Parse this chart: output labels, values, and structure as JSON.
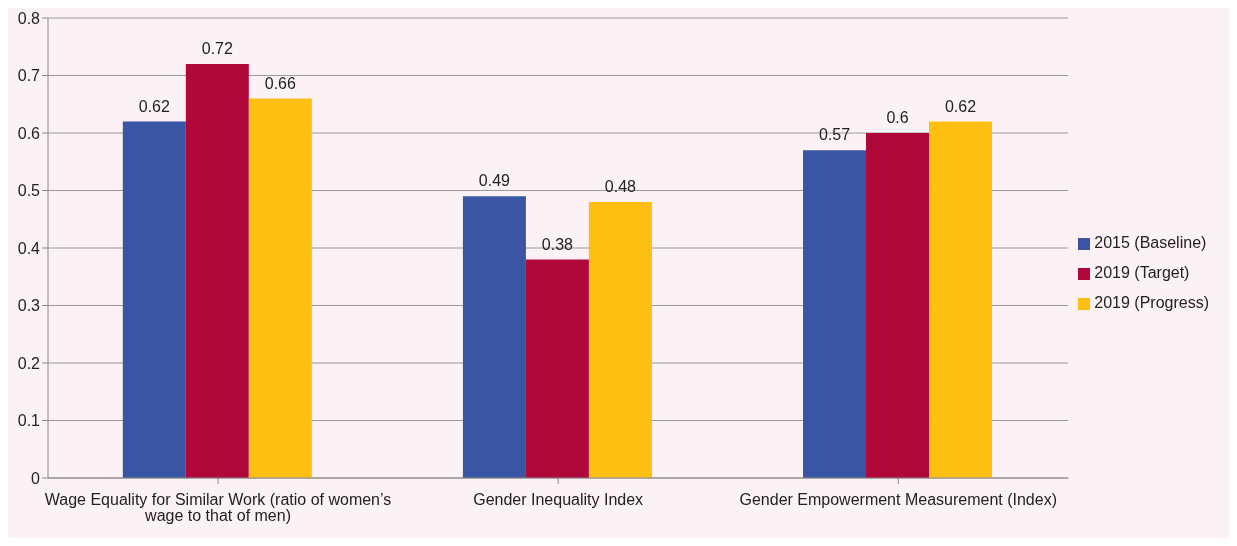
{
  "chart_data": {
    "type": "bar",
    "categories": [
      "Wage Equality for Similar Work (ratio of women’s wage to that of men)",
      "Gender Inequality Index",
      "Gender Empowerment Measurement (Index)"
    ],
    "series": [
      {
        "name": "2015 (Baseline)",
        "color": "#3a55a4",
        "values": [
          0.62,
          0.49,
          0.57
        ]
      },
      {
        "name": "2019 (Target)",
        "color": "#b0083a",
        "values": [
          0.72,
          0.38,
          0.6
        ]
      },
      {
        "name": "2019 (Progress)",
        "color": "#fdbf12",
        "values": [
          0.66,
          0.48,
          0.62
        ]
      }
    ],
    "ylim": [
      0,
      0.8
    ],
    "yticks": [
      0,
      0.1,
      0.2,
      0.3,
      0.4,
      0.5,
      0.6,
      0.7,
      0.8
    ],
    "grid": "y",
    "legend": "right",
    "data_labels": true
  }
}
